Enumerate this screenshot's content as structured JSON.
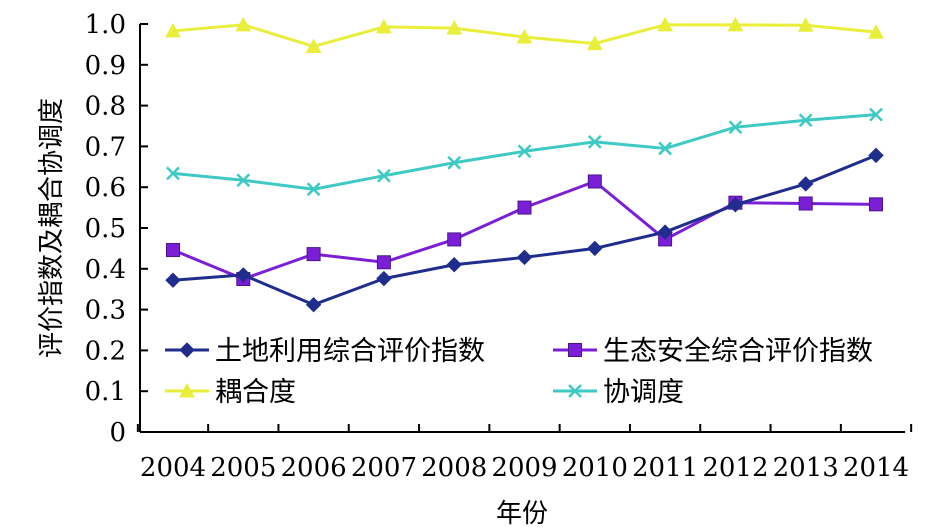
{
  "chart_data": {
    "type": "line",
    "title": "",
    "xlabel": "年份",
    "ylabel": "评价指数及耦合协调度",
    "categories": [
      "2004",
      "2005",
      "2006",
      "2007",
      "2008",
      "2009",
      "2010",
      "2011",
      "2012",
      "2013",
      "2014"
    ],
    "ylim": [
      0,
      1.0
    ],
    "yticks": [
      "0",
      "0.1",
      "0.2",
      "0.3",
      "0.4",
      "0.5",
      "0.6",
      "0.7",
      "0.8",
      "0.9",
      "1.0"
    ],
    "grid": false,
    "legend_position": "bottom-inside",
    "series": [
      {
        "name": "土地利用综合评价指数",
        "color": "#1f2d8c",
        "marker": "diamond",
        "values": [
          0.372,
          0.385,
          0.312,
          0.376,
          0.41,
          0.428,
          0.45,
          0.49,
          0.557,
          0.608,
          0.678
        ]
      },
      {
        "name": "生态安全综合评价指数",
        "color": "#7b1fd6",
        "marker": "square",
        "values": [
          0.446,
          0.375,
          0.436,
          0.416,
          0.472,
          0.55,
          0.614,
          0.472,
          0.562,
          0.56,
          0.558
        ]
      },
      {
        "name": "耦合度",
        "color": "#e8ee3a",
        "marker": "triangle",
        "values": [
          0.983,
          0.998,
          0.945,
          0.993,
          0.99,
          0.968,
          0.952,
          0.998,
          0.998,
          0.997,
          0.98
        ]
      },
      {
        "name": "协调度",
        "color": "#3ec9c4",
        "marker": "x",
        "values": [
          0.634,
          0.617,
          0.595,
          0.628,
          0.66,
          0.688,
          0.711,
          0.695,
          0.747,
          0.764,
          0.778
        ]
      }
    ]
  }
}
